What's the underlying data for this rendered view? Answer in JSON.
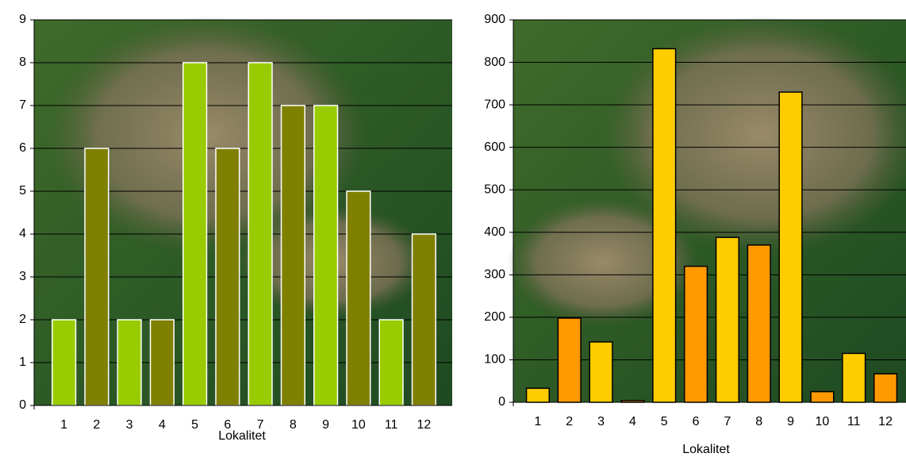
{
  "chart_data": [
    {
      "type": "bar",
      "x_label": "Lokalitet",
      "categories": [
        "1",
        "2",
        "3",
        "4",
        "5",
        "6",
        "7",
        "8",
        "9",
        "10",
        "11",
        "12"
      ],
      "values": [
        2,
        6,
        2,
        2,
        8,
        6,
        8,
        7,
        7,
        5,
        2,
        4
      ],
      "colors": [
        "#99cc00",
        "#808000",
        "#99cc00",
        "#808000",
        "#99cc00",
        "#808000",
        "#99cc00",
        "#808000",
        "#99cc00",
        "#808000",
        "#99cc00",
        "#808000"
      ],
      "bar_edge_color": "#ffffff",
      "ylim": [
        0,
        9
      ],
      "yticks": [
        0,
        1,
        2,
        3,
        4,
        5,
        6,
        7,
        8,
        9
      ],
      "grid": true
    },
    {
      "type": "bar",
      "x_label": "Lokalitet",
      "categories": [
        "1",
        "2",
        "3",
        "4",
        "5",
        "6",
        "7",
        "8",
        "9",
        "10",
        "11",
        "12"
      ],
      "values": [
        33,
        198,
        142,
        4,
        832,
        320,
        388,
        370,
        730,
        25,
        115,
        67
      ],
      "colors": [
        "#ffcc00",
        "#ff9900",
        "#ffcc00",
        "#ff9900",
        "#ffcc00",
        "#ff9900",
        "#ffcc00",
        "#ff9900",
        "#ffcc00",
        "#ff9900",
        "#ffcc00",
        "#ff9900"
      ],
      "bar_edge_color": "#000000",
      "ylim": [
        0,
        900
      ],
      "yticks": [
        0,
        100,
        200,
        300,
        400,
        500,
        600,
        700,
        800,
        900
      ],
      "grid": true
    }
  ]
}
